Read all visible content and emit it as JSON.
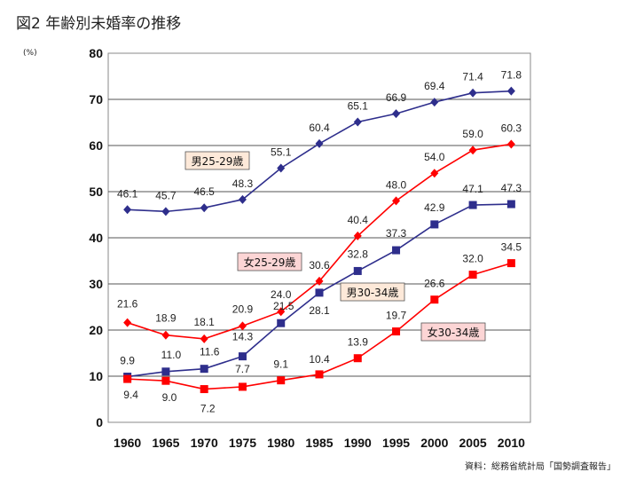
{
  "title": "図2 年齢別未婚率の推移",
  "unit": "(%)",
  "source": "資料：総務省統計局「国勢調査報告」",
  "chart_data": {
    "type": "line",
    "x": [
      "1960",
      "1965",
      "1970",
      "1975",
      "1980",
      "1985",
      "1990",
      "1995",
      "2000",
      "2005",
      "2010"
    ],
    "ylim": [
      0,
      80
    ],
    "yticks": [
      "0",
      "10",
      "20",
      "30",
      "40",
      "50",
      "60",
      "70",
      "80"
    ],
    "grid": true,
    "series": [
      {
        "name": "男25-29歳",
        "color": "#2e2e8c",
        "marker": "diamond",
        "values": [
          46.1,
          45.7,
          46.5,
          48.3,
          55.1,
          60.4,
          65.1,
          66.9,
          69.4,
          71.4,
          71.8
        ],
        "labels": [
          "46.1",
          "45.7",
          "46.5",
          "48.3",
          "55.1",
          "60.4",
          "65.1",
          "66.9",
          "69.4",
          "71.4",
          "71.8"
        ],
        "label_box_fill": "#fde9d9"
      },
      {
        "name": "女25-29歳",
        "color": "#ff0000",
        "marker": "diamond",
        "values": [
          21.6,
          18.9,
          18.1,
          20.9,
          24.0,
          30.6,
          40.4,
          48.0,
          54.0,
          59.0,
          60.3
        ],
        "labels": [
          "21.6",
          "18.9",
          "18.1",
          "20.9",
          "24.0",
          "30.6",
          "40.4",
          "48.0",
          "54.0",
          "59.0",
          "60.3"
        ],
        "label_box_fill": "#fcd5d5"
      },
      {
        "name": "男30-34歳",
        "color": "#2e2e8c",
        "marker": "square",
        "values": [
          9.9,
          11.0,
          11.6,
          14.3,
          21.5,
          28.1,
          32.8,
          37.3,
          42.9,
          47.1,
          47.3
        ],
        "labels": [
          "9.9",
          "11.0",
          "11.6",
          "14.3",
          "21.5",
          "28.1",
          "32.8",
          "37.3",
          "42.9",
          "47.1",
          "47.3"
        ],
        "label_box_fill": "#fde9d9"
      },
      {
        "name": "女30-34歳",
        "color": "#ff0000",
        "marker": "square",
        "values": [
          9.4,
          9.0,
          7.2,
          7.7,
          9.1,
          10.4,
          13.9,
          19.7,
          26.6,
          32.0,
          34.5
        ],
        "labels": [
          "9.4",
          "9.0",
          "7.2",
          "7.7",
          "9.1",
          "10.4",
          "13.9",
          "19.7",
          "26.6",
          "32.0",
          "34.5"
        ],
        "label_box_fill": "#fcd5d5"
      }
    ]
  }
}
